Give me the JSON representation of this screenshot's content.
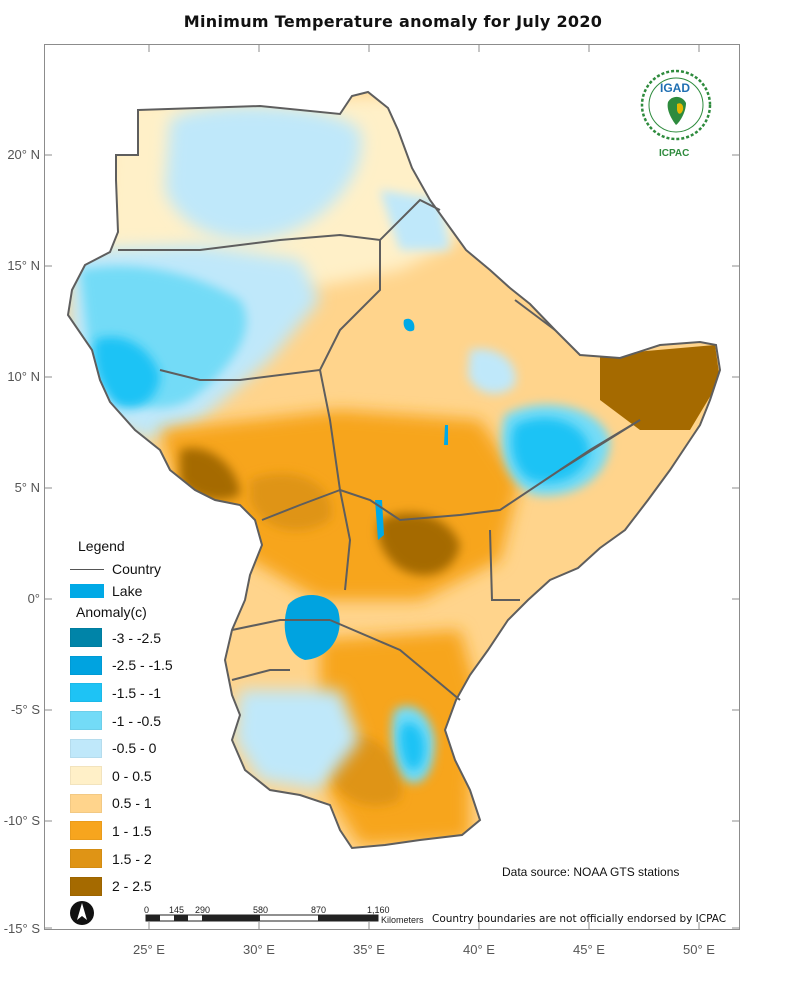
{
  "title": "Minimum Temperature  anomaly for  July 2020",
  "axes": {
    "lat_labels": [
      "20° N",
      "15° N",
      "10° N",
      "5° N",
      "0°",
      "-5° S",
      "-10° S",
      "-15° S"
    ],
    "lon_labels": [
      "25° E",
      "30° E",
      "35° E",
      "40° E",
      "45° E",
      "50° E"
    ]
  },
  "legend": {
    "title": "Legend",
    "country_label": "Country",
    "lake_label": "Lake",
    "anomaly_title": "Anomaly(c)",
    "classes": [
      {
        "label": "-3 - -2.5",
        "color": "#0084a8"
      },
      {
        "label": "-2.5 - -1.5",
        "color": "#00a3e0"
      },
      {
        "label": "-1.5 - -1",
        "color": "#1ec3f5"
      },
      {
        "label": "-1 - -0.5",
        "color": "#73dbf7"
      },
      {
        "label": "-0.5 - 0",
        "color": "#bfe8fa"
      },
      {
        "label": "0 - 0.5",
        "color": "#fff0c8"
      },
      {
        "label": "0.5 - 1",
        "color": "#ffd48c"
      },
      {
        "label": "1 - 1.5",
        "color": "#f7a51e"
      },
      {
        "label": "1.5 - 2",
        "color": "#df9415"
      },
      {
        "label": "2 - 2.5",
        "color": "#a56a00"
      }
    ]
  },
  "scale_bar": {
    "ticks": [
      "0",
      "145",
      "290",
      "580",
      "870",
      "1,160"
    ],
    "unit": "Kilometers"
  },
  "data_source": "Data source: NOAA   GTS stations",
  "disclaimer": "Country boundaries are not officially endorsed by ICPAC",
  "logo": {
    "top_text": "IGAD",
    "bottom_text": "ICPAC"
  },
  "north_arrow_icon": "north-arrow-icon"
}
